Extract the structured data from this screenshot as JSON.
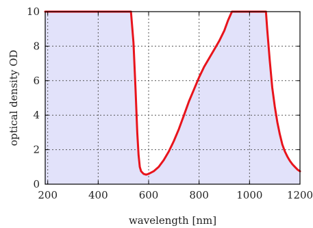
{
  "chart_data": {
    "type": "area",
    "title": "",
    "xlabel": "wavelength [nm]",
    "ylabel": "optical density OD",
    "xlim": [
      190,
      1200
    ],
    "ylim": [
      0,
      10
    ],
    "x_ticks": [
      200,
      400,
      600,
      800,
      1000,
      1200
    ],
    "y_ticks": [
      0,
      2,
      4,
      6,
      8,
      10
    ],
    "grid": true,
    "colors": {
      "line": "#e8141c",
      "fill": "#e2e2fa",
      "frame": "#000000"
    },
    "series": [
      {
        "x": [
          190,
          200,
          250,
          300,
          350,
          400,
          450,
          500,
          530,
          540,
          548,
          555,
          560,
          565,
          570,
          580,
          590,
          600,
          620,
          640,
          660,
          680,
          700,
          720,
          740,
          760,
          780,
          800,
          820,
          840,
          860,
          880,
          900,
          915,
          930,
          940,
          950,
          975,
          1000,
          1025,
          1050,
          1065,
          1070,
          1080,
          1090,
          1100,
          1110,
          1120,
          1130,
          1140,
          1150,
          1160,
          1170,
          1180,
          1190,
          1200
        ],
        "y": [
          10,
          10,
          10,
          10,
          10,
          10,
          10,
          10,
          10,
          8.2,
          5.5,
          3.0,
          1.7,
          1.0,
          0.75,
          0.6,
          0.55,
          0.6,
          0.75,
          1.0,
          1.4,
          1.9,
          2.5,
          3.2,
          4.0,
          4.8,
          5.5,
          6.2,
          6.8,
          7.3,
          7.8,
          8.3,
          8.9,
          9.5,
          10,
          10,
          10,
          10,
          10,
          10,
          10,
          10,
          9.0,
          7.2,
          5.6,
          4.5,
          3.6,
          2.9,
          2.3,
          1.9,
          1.6,
          1.35,
          1.15,
          1.0,
          0.85,
          0.75
        ]
      }
    ]
  }
}
